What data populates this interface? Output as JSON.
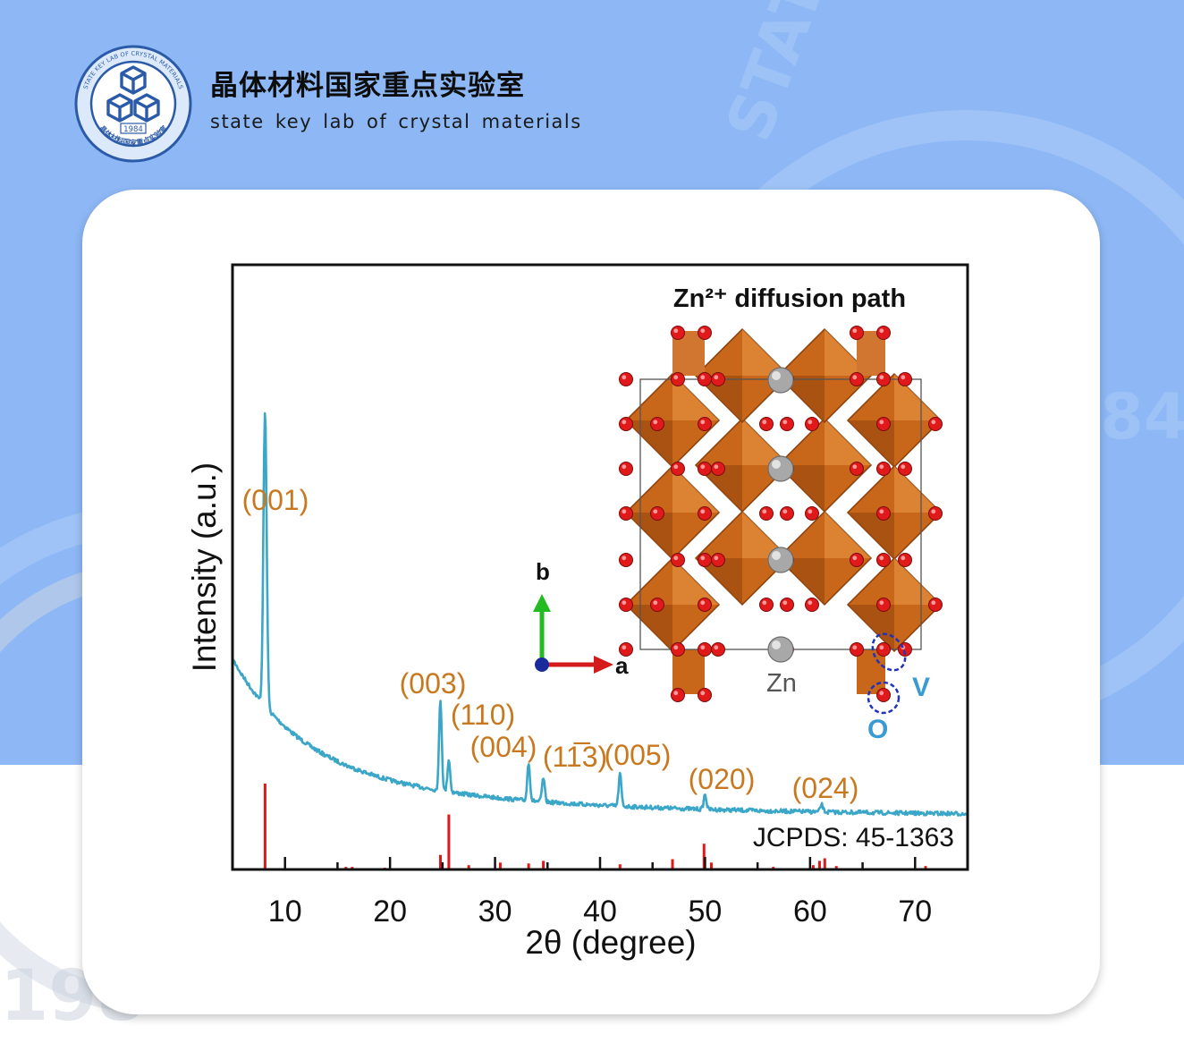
{
  "header": {
    "title": "晶体材料国家重点实验室",
    "subtitle": "state key lab of crystal materials",
    "logo": {
      "year": "1984",
      "ring_text_en": "STATE KEY LAB OF CRYSTAL MATERIALS",
      "ring_text_cn": "晶体材料国家重点实验室"
    }
  },
  "colors": {
    "background_blue": "#8db8f5",
    "card": "#ffffff",
    "xrd_trace": "#3aa6c8",
    "reference_lines": "#e01818",
    "peak_labels": "#c8781e",
    "octahedra": "#c8661a",
    "oxygen": "#e01a1a",
    "zinc": "#a8a8a8"
  },
  "chart_data": {
    "type": "line",
    "xlabel": "2θ (degree)",
    "ylabel": "Intensity (a.u.)",
    "xlim": [
      5,
      75
    ],
    "xticks": [
      10,
      20,
      30,
      40,
      50,
      60,
      70
    ],
    "grid": false,
    "series": [
      {
        "color": "#3aa6c8",
        "peaks": [
          {
            "x": 8.1,
            "label": "(001)",
            "height": 1.0
          },
          {
            "x": 24.8,
            "label": "(003)",
            "height": 0.31
          },
          {
            "x": 25.6,
            "label": "(110)",
            "height": 0.11
          },
          {
            "x": 33.2,
            "label": "(004)",
            "height": 0.13
          },
          {
            "x": 34.6,
            "label": "(11̅3)",
            "height": 0.08
          },
          {
            "x": 41.9,
            "label": "(005)",
            "height": 0.11
          },
          {
            "x": 50.0,
            "label": "(020)",
            "height": 0.05
          },
          {
            "x": 61.1,
            "label": "(024)",
            "height": 0.025
          }
        ]
      }
    ],
    "reference": {
      "label": "JCPDS: 45-1363",
      "color": "#e01818",
      "lines": [
        {
          "x": 8.1,
          "h": 1.0
        },
        {
          "x": 15.8,
          "h": 0.03
        },
        {
          "x": 16.4,
          "h": 0.03
        },
        {
          "x": 19.5,
          "h": 0.02
        },
        {
          "x": 24.8,
          "h": 0.17
        },
        {
          "x": 25.6,
          "h": 0.64
        },
        {
          "x": 27.5,
          "h": 0.05
        },
        {
          "x": 30.5,
          "h": 0.08
        },
        {
          "x": 33.2,
          "h": 0.07
        },
        {
          "x": 34.6,
          "h": 0.1
        },
        {
          "x": 41.9,
          "h": 0.06
        },
        {
          "x": 46.9,
          "h": 0.12
        },
        {
          "x": 49.9,
          "h": 0.3
        },
        {
          "x": 50.6,
          "h": 0.08
        },
        {
          "x": 56.5,
          "h": 0.03
        },
        {
          "x": 60.3,
          "h": 0.05
        },
        {
          "x": 60.9,
          "h": 0.1
        },
        {
          "x": 61.4,
          "h": 0.13
        },
        {
          "x": 62.5,
          "h": 0.04
        },
        {
          "x": 71.0,
          "h": 0.04
        }
      ]
    },
    "inset": {
      "title": "Zn²⁺ diffusion path",
      "axis_b": "b",
      "axis_a": "a",
      "label_zn": "Zn",
      "label_v": "V",
      "label_o": "O"
    }
  }
}
